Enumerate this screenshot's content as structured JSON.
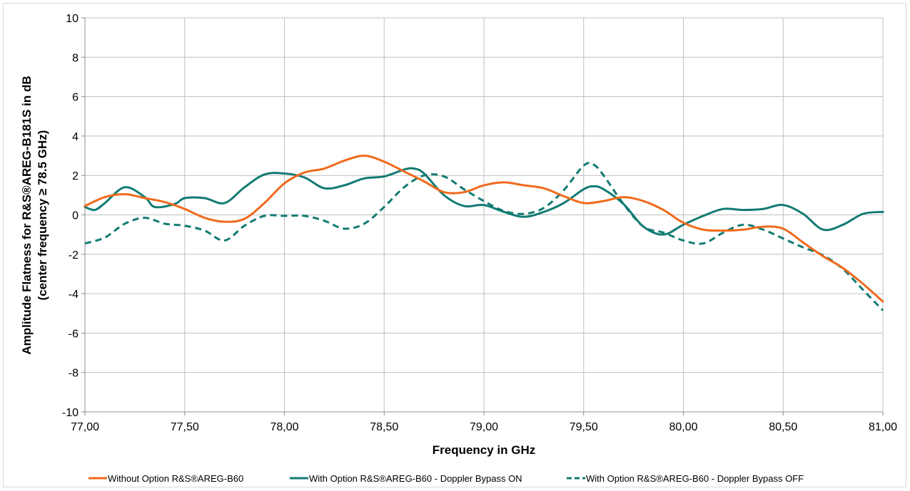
{
  "chart_data": {
    "type": "line",
    "xlabel": "Frequency in GHz",
    "ylabel_lines": [
      "Amplitude Flatness for R&S®AREG-B181S in dB",
      "(center frequency ≥ 78.5 GHz)"
    ],
    "xlim": [
      77.0,
      81.0
    ],
    "ylim": [
      -10,
      10
    ],
    "x_ticks": [
      77.0,
      77.5,
      78.0,
      78.5,
      79.0,
      79.5,
      80.0,
      80.5,
      81.0
    ],
    "x_tick_labels": [
      "77,00",
      "77,50",
      "78,00",
      "78,50",
      "79,00",
      "79,50",
      "80,00",
      "80,50",
      "81,00"
    ],
    "y_ticks": [
      -10,
      -8,
      -6,
      -4,
      -2,
      0,
      2,
      4,
      6,
      8,
      10
    ],
    "y_tick_labels": [
      "-10",
      "-8",
      "-6",
      "-4",
      "-2",
      "0",
      "2",
      "4",
      "6",
      "8",
      "10"
    ],
    "grid": true,
    "legend_position": "bottom",
    "series": [
      {
        "name": "Without Option R&S®AREG-B60",
        "color": "#f06a1c",
        "dash": "solid",
        "points": [
          [
            77.0,
            0.45
          ],
          [
            77.1,
            0.9
          ],
          [
            77.2,
            1.05
          ],
          [
            77.3,
            0.85
          ],
          [
            77.4,
            0.65
          ],
          [
            77.5,
            0.3
          ],
          [
            77.6,
            -0.15
          ],
          [
            77.7,
            -0.35
          ],
          [
            77.8,
            -0.2
          ],
          [
            77.9,
            0.6
          ],
          [
            78.0,
            1.6
          ],
          [
            78.1,
            2.15
          ],
          [
            78.2,
            2.35
          ],
          [
            78.3,
            2.75
          ],
          [
            78.4,
            3.0
          ],
          [
            78.5,
            2.7
          ],
          [
            78.6,
            2.2
          ],
          [
            78.7,
            1.7
          ],
          [
            78.8,
            1.15
          ],
          [
            78.9,
            1.15
          ],
          [
            79.0,
            1.5
          ],
          [
            79.1,
            1.65
          ],
          [
            79.2,
            1.5
          ],
          [
            79.3,
            1.35
          ],
          [
            79.4,
            0.95
          ],
          [
            79.5,
            0.6
          ],
          [
            79.6,
            0.7
          ],
          [
            79.7,
            0.9
          ],
          [
            79.8,
            0.7
          ],
          [
            79.9,
            0.25
          ],
          [
            80.0,
            -0.4
          ],
          [
            80.1,
            -0.75
          ],
          [
            80.2,
            -0.8
          ],
          [
            80.3,
            -0.75
          ],
          [
            80.4,
            -0.6
          ],
          [
            80.5,
            -0.7
          ],
          [
            80.6,
            -1.4
          ],
          [
            80.7,
            -2.1
          ],
          [
            80.8,
            -2.7
          ],
          [
            80.9,
            -3.5
          ],
          [
            81.0,
            -4.4
          ]
        ]
      },
      {
        "name": "With Option R&S®AREG-B60 - Doppler Bypass ON",
        "color": "#117b72",
        "dash": "solid",
        "points": [
          [
            77.0,
            0.4
          ],
          [
            77.05,
            0.25
          ],
          [
            77.1,
            0.6
          ],
          [
            77.2,
            1.4
          ],
          [
            77.3,
            0.9
          ],
          [
            77.35,
            0.4
          ],
          [
            77.45,
            0.55
          ],
          [
            77.5,
            0.85
          ],
          [
            77.6,
            0.85
          ],
          [
            77.7,
            0.6
          ],
          [
            77.8,
            1.4
          ],
          [
            77.9,
            2.05
          ],
          [
            78.0,
            2.1
          ],
          [
            78.1,
            1.9
          ],
          [
            78.2,
            1.35
          ],
          [
            78.3,
            1.5
          ],
          [
            78.4,
            1.85
          ],
          [
            78.5,
            1.95
          ],
          [
            78.6,
            2.3
          ],
          [
            78.65,
            2.35
          ],
          [
            78.7,
            2.1
          ],
          [
            78.8,
            1.0
          ],
          [
            78.9,
            0.45
          ],
          [
            79.0,
            0.5
          ],
          [
            79.1,
            0.15
          ],
          [
            79.2,
            -0.1
          ],
          [
            79.3,
            0.15
          ],
          [
            79.4,
            0.6
          ],
          [
            79.5,
            1.3
          ],
          [
            79.55,
            1.45
          ],
          [
            79.6,
            1.3
          ],
          [
            79.7,
            0.55
          ],
          [
            79.8,
            -0.6
          ],
          [
            79.9,
            -1.0
          ],
          [
            80.0,
            -0.5
          ],
          [
            80.1,
            -0.05
          ],
          [
            80.2,
            0.3
          ],
          [
            80.3,
            0.25
          ],
          [
            80.4,
            0.3
          ],
          [
            80.5,
            0.5
          ],
          [
            80.6,
            0.05
          ],
          [
            80.7,
            -0.75
          ],
          [
            80.8,
            -0.5
          ],
          [
            80.9,
            0.05
          ],
          [
            81.0,
            0.15
          ]
        ]
      },
      {
        "name": "With Option R&S®AREG-B60 - Doppler Bypass OFF",
        "color": "#117b72",
        "dash": "dashed",
        "points": [
          [
            77.0,
            -1.45
          ],
          [
            77.1,
            -1.15
          ],
          [
            77.2,
            -0.45
          ],
          [
            77.3,
            -0.15
          ],
          [
            77.4,
            -0.45
          ],
          [
            77.5,
            -0.55
          ],
          [
            77.6,
            -0.8
          ],
          [
            77.7,
            -1.3
          ],
          [
            77.8,
            -0.55
          ],
          [
            77.9,
            -0.05
          ],
          [
            78.0,
            -0.05
          ],
          [
            78.1,
            -0.05
          ],
          [
            78.2,
            -0.3
          ],
          [
            78.3,
            -0.7
          ],
          [
            78.4,
            -0.45
          ],
          [
            78.5,
            0.4
          ],
          [
            78.6,
            1.4
          ],
          [
            78.7,
            2.0
          ],
          [
            78.8,
            1.95
          ],
          [
            78.9,
            1.3
          ],
          [
            79.0,
            0.7
          ],
          [
            79.1,
            0.2
          ],
          [
            79.2,
            0.05
          ],
          [
            79.3,
            0.35
          ],
          [
            79.4,
            1.25
          ],
          [
            79.5,
            2.5
          ],
          [
            79.55,
            2.55
          ],
          [
            79.6,
            2.0
          ],
          [
            79.7,
            0.55
          ],
          [
            79.8,
            -0.6
          ],
          [
            79.9,
            -0.9
          ],
          [
            80.0,
            -1.3
          ],
          [
            80.1,
            -1.45
          ],
          [
            80.2,
            -0.9
          ],
          [
            80.3,
            -0.5
          ],
          [
            80.4,
            -0.75
          ],
          [
            80.5,
            -1.2
          ],
          [
            80.6,
            -1.65
          ],
          [
            80.7,
            -2.05
          ],
          [
            80.8,
            -2.75
          ],
          [
            80.9,
            -3.8
          ],
          [
            81.0,
            -4.85
          ]
        ]
      }
    ]
  }
}
